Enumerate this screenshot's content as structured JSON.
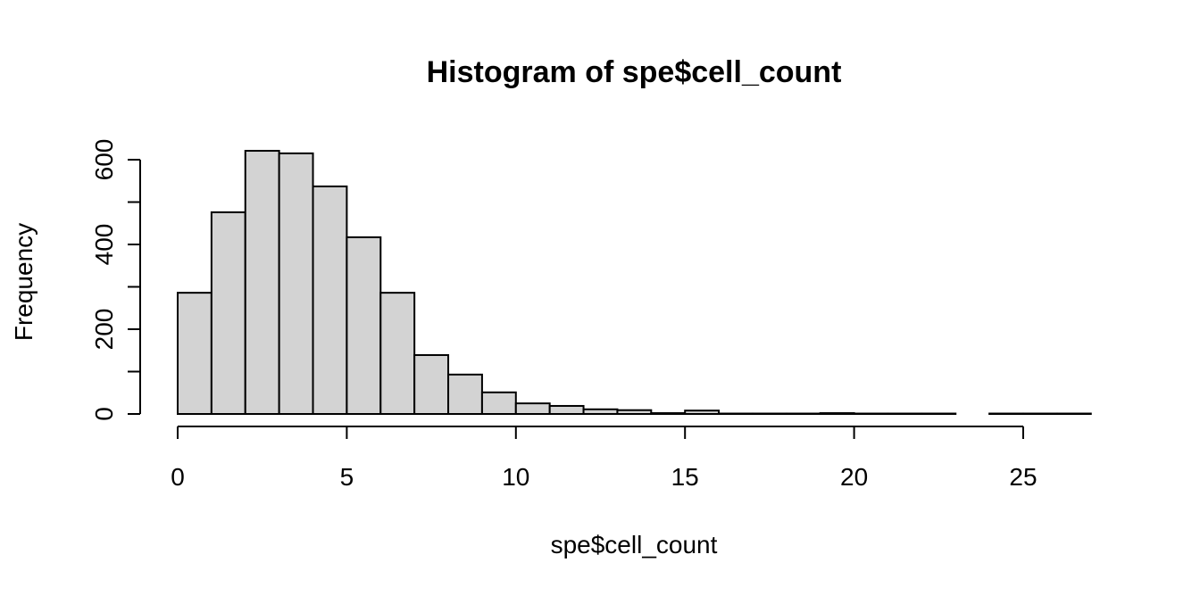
{
  "chart_data": {
    "type": "bar",
    "title": "Histogram of spe$cell_count",
    "xlabel": "spe$cell_count",
    "ylabel": "Frequency",
    "bin_edges": [
      0,
      1,
      2,
      3,
      4,
      5,
      6,
      7,
      8,
      9,
      10,
      11,
      12,
      13,
      14,
      15,
      16,
      17,
      18,
      19,
      20,
      21,
      22,
      23,
      24,
      25,
      26,
      27
    ],
    "values": [
      286,
      476,
      621,
      615,
      537,
      417,
      286,
      139,
      93,
      51,
      25,
      19,
      11,
      9,
      2,
      8,
      1,
      1,
      1,
      2,
      1,
      1,
      1,
      0,
      1,
      1,
      1
    ],
    "xlim": [
      0,
      27
    ],
    "ylim": [
      0,
      600
    ],
    "xticks": [
      0,
      5,
      10,
      15,
      20,
      25
    ],
    "yticks": [
      0,
      100,
      200,
      300,
      400,
      500,
      600
    ],
    "ytick_labels": [
      "0",
      "",
      "200",
      "",
      "400",
      "",
      "600"
    ],
    "bar_fill": "#d3d3d3",
    "grid": false
  }
}
